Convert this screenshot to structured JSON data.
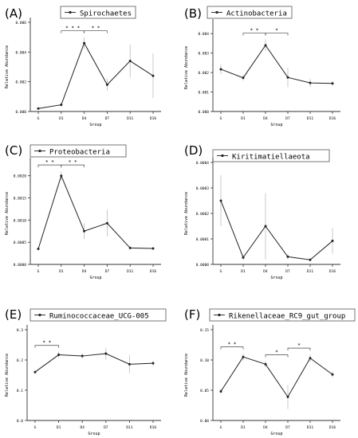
{
  "chart_data": [
    {
      "type": "line",
      "panel_label": "(A)",
      "legend": "Spirochaetes",
      "categories": [
        "G",
        "D1",
        "D4",
        "D7",
        "D11",
        "D16"
      ],
      "values": [
        0.0002,
        0.00045,
        0.0046,
        0.0018,
        0.0034,
        0.0024
      ],
      "error": [
        5e-05,
        0.0001,
        0.0004,
        0.0004,
        0.0011,
        0.0015
      ],
      "ylim": [
        0,
        0.006
      ],
      "yticks": [
        "0.000",
        "0.002",
        "0.004",
        "0.006"
      ],
      "ylabel": "Relative Abundance",
      "xlabel": "Group",
      "significance": [
        {
          "from": 1,
          "to": 2,
          "label": "* * *"
        },
        {
          "from": 2,
          "to": 3,
          "label": "* *"
        }
      ]
    },
    {
      "type": "line",
      "panel_label": "(B)",
      "legend": "Actinobacteria",
      "categories": [
        "G",
        "D1",
        "D4",
        "D7",
        "D11",
        "D16"
      ],
      "values": [
        0.00217,
        0.00173,
        0.0034,
        0.00175,
        0.00147,
        0.00144
      ],
      "error": [
        0.00025,
        0.00015,
        0.0003,
        0.0005,
        0.0002,
        0.0001
      ],
      "ylim": [
        0,
        0.0045
      ],
      "yticks": [
        "0.000",
        "0.001",
        "0.002",
        "0.003",
        "0.004"
      ],
      "ylabel": "Relative Abundance",
      "xlabel": "Group",
      "significance": [
        {
          "from": 1,
          "to": 2,
          "label": "* *"
        },
        {
          "from": 2,
          "to": 3,
          "label": "*"
        }
      ]
    },
    {
      "type": "line",
      "panel_label": "(C)",
      "legend": "Proteobacteria",
      "categories": [
        "G",
        "D1",
        "D4",
        "D7",
        "D11",
        "D16"
      ],
      "values": [
        0.00035,
        0.002,
        0.00075,
        0.00093,
        0.00037,
        0.00036
      ],
      "error": [
        3e-05,
        0.0001,
        0.00018,
        0.0003,
        3e-05,
        2e-05
      ],
      "ylim": [
        0,
        0.0023
      ],
      "yticks": [
        "0.0000",
        "0.0005",
        "0.0010",
        "0.0015",
        "0.0020"
      ],
      "ylabel": "Relative Abundance",
      "xlabel": "Group",
      "significance": [
        {
          "from": 0,
          "to": 1,
          "label": "* *"
        },
        {
          "from": 1,
          "to": 2,
          "label": "* *"
        }
      ]
    },
    {
      "type": "line",
      "panel_label": "(D)",
      "legend": "Kiritimatiellaeota",
      "categories": [
        "G",
        "D1",
        "D4",
        "D7",
        "D11",
        "D16"
      ],
      "values": [
        0.00025,
        2.7e-05,
        0.00015,
        3e-05,
        1.8e-05,
        9.2e-05
      ],
      "error": [
        0.0001,
        1e-05,
        0.00013,
        1e-05,
        5e-06,
        5e-05
      ],
      "ylim": [
        0,
        0.0004
      ],
      "yticks": [
        "0.0000",
        "0.0001",
        "0.0002",
        "0.0003",
        "0.0004"
      ],
      "ylabel": "Relative Abundance",
      "xlabel": "Group",
      "significance": []
    },
    {
      "type": "line",
      "panel_label": "(E)",
      "legend": "Ruminococcaceae_UCG-005",
      "categories": [
        "G",
        "D1",
        "D4",
        "D7",
        "D11",
        "D16"
      ],
      "values": [
        0.16,
        0.217,
        0.213,
        0.221,
        0.186,
        0.189
      ],
      "error": [
        0.006,
        0.01,
        0.008,
        0.02,
        0.03,
        0.008
      ],
      "ylim": [
        0,
        0.3
      ],
      "yticks": [
        "0.0",
        "0.1",
        "0.2",
        "0.3"
      ],
      "ylabel": "Relative Abundance",
      "xlabel": "Group",
      "significance": [
        {
          "from": 0,
          "to": 1,
          "label": "* *"
        }
      ]
    },
    {
      "type": "line",
      "panel_label": "(F)",
      "legend": "Rikenellaceae_RC9_gut_group",
      "categories": [
        "G",
        "D1",
        "D4",
        "D7",
        "D11",
        "D16"
      ],
      "values": [
        0.048,
        0.105,
        0.093,
        0.039,
        0.103,
        0.076
      ],
      "error": [
        0.004,
        0.006,
        0.005,
        0.02,
        0.006,
        0.005
      ],
      "ylim": [
        0,
        0.15
      ],
      "yticks": [
        "0.00",
        "0.05",
        "0.10",
        "0.15"
      ],
      "ylabel": "Relative Abundance",
      "xlabel": "Group",
      "significance": [
        {
          "from": 0,
          "to": 1,
          "label": "* *"
        },
        {
          "from": 2,
          "to": 3,
          "label": "*"
        },
        {
          "from": 3,
          "to": 4,
          "label": "*"
        }
      ]
    }
  ]
}
